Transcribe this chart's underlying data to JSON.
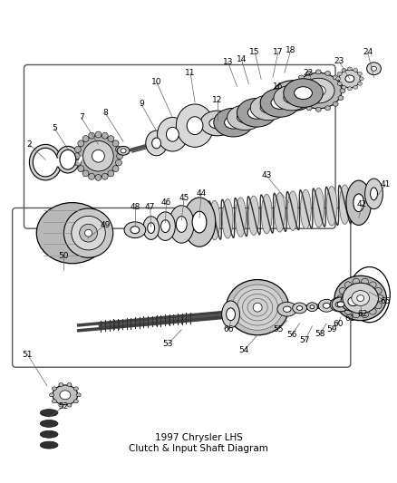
{
  "title": "1997 Chrysler LHS\nClutch & Input Shaft Diagram",
  "bg_color": "#ffffff",
  "fig_width": 4.38,
  "fig_height": 5.33,
  "dpi": 100,
  "line_color": "#000000",
  "label_fontsize": 6.5,
  "title_fontsize": 7.5,
  "gray_dark": "#404040",
  "gray_mid": "#808080",
  "gray_light": "#b0b0b0",
  "gray_lighter": "#d0d0d0",
  "gray_pale": "#e8e8e8"
}
